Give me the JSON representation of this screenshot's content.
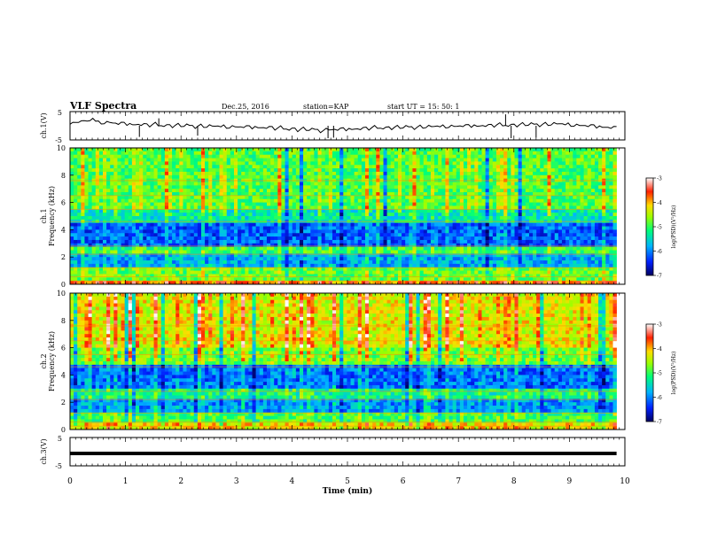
{
  "header": {
    "title": "VLF Spectra",
    "date": "Dec.25, 2016",
    "station": "station=KAP",
    "start": "start UT =  15: 50: 1"
  },
  "colors": {
    "background": "#ffffff",
    "axis": "#000000",
    "trace": "#000000",
    "colormap": [
      "#0000a0",
      "#0050ff",
      "#00c8ff",
      "#00ff80",
      "#a0ff00",
      "#ffd000",
      "#ff3000",
      "#ffffff"
    ]
  },
  "chart_data": [
    {
      "type": "line",
      "ylabel": "ch.1(V)",
      "ylim": [
        -5,
        5
      ],
      "yticks": [
        "5",
        "-5"
      ],
      "xlim": [
        0,
        9.85
      ],
      "x_step_min": 0.05,
      "values": [
        1.2,
        1.5,
        1.0,
        1.8,
        2.0,
        1.6,
        2.2,
        1.9,
        2.4,
        2.1,
        1.7,
        1.3,
        0.9,
        1.4,
        1.8,
        1.1,
        0.6,
        0.9,
        1.3,
        0.8,
        0.4,
        0.7,
        1.0,
        0.5,
        0.2,
        0.6,
        0.9,
        0.3,
        -0.1,
        0.4,
        0.8,
        0.2,
        -0.2,
        0.3,
        0.6,
        0.1,
        -0.3,
        0.2,
        0.5,
        0.0,
        -0.4,
        0.1,
        0.4,
        -0.1,
        -0.5,
        0.0,
        0.3,
        -0.2,
        -0.6,
        -0.1,
        0.2,
        -0.3,
        -0.7,
        -0.2,
        0.1,
        -0.4,
        -0.8,
        -0.3,
        0.0,
        -0.5,
        -0.9,
        -0.4,
        -0.1,
        -0.6,
        -1.0,
        -0.5,
        -0.2,
        -0.7,
        -1.1,
        -0.6,
        -0.3,
        -0.8,
        -1.4,
        -1.0,
        -0.6,
        -1.1,
        -1.6,
        -1.2,
        -0.8,
        -1.3,
        -1.9,
        -1.4,
        -1.0,
        -1.5,
        -2.0,
        -1.6,
        -1.2,
        -1.7,
        -2.2,
        -1.8,
        -1.4,
        -1.2,
        -1.6,
        -1.9,
        -1.5,
        -1.1,
        -1.4,
        -1.8,
        -1.3,
        -0.9,
        -1.2,
        -1.6,
        -1.1,
        -0.7,
        -1.0,
        -1.4,
        -0.9,
        -0.5,
        -0.8,
        -1.2,
        -0.7,
        -0.4,
        -0.8,
        -1.1,
        -0.6,
        -0.3,
        -0.7,
        -1.0,
        -0.5,
        -0.2,
        -0.6,
        -0.9,
        -0.4,
        -0.1,
        -0.5,
        -0.8,
        -0.3,
        0.0,
        -0.4,
        -0.7,
        -0.2,
        0.1,
        -0.3,
        -0.6,
        -0.1,
        0.2,
        -0.2,
        -0.5,
        0.0,
        0.3,
        -0.1,
        -0.4,
        0.1,
        0.4,
        0.0,
        -0.3,
        0.2,
        0.5,
        0.1,
        -0.2,
        0.3,
        0.6,
        0.2,
        -0.1,
        0.4,
        0.7,
        0.3,
        0.0,
        0.5,
        0.8,
        0.4,
        0.1,
        0.6,
        0.9,
        0.5,
        0.2,
        0.7,
        1.0,
        0.6,
        0.3,
        0.8,
        1.1,
        0.7,
        0.2,
        0.6,
        0.9,
        0.4,
        -0.1,
        0.3,
        0.6,
        0.1,
        -0.4,
        0.0,
        0.3,
        -0.2,
        -0.7,
        -0.3,
        0.0,
        -0.5,
        -1.0,
        -0.6,
        -0.3,
        -0.8
      ],
      "spikes": [
        {
          "x": 1.25,
          "y": -4.5
        },
        {
          "x": 1.6,
          "y": 3.0
        },
        {
          "x": 2.3,
          "y": -4.0
        },
        {
          "x": 4.65,
          "y": -5.0
        },
        {
          "x": 4.75,
          "y": -4.8
        },
        {
          "x": 7.85,
          "y": 4.6
        },
        {
          "x": 7.95,
          "y": -5.0
        },
        {
          "x": 8.4,
          "y": -4.8
        }
      ]
    },
    {
      "type": "heatmap",
      "ylabel": "ch.1\nFrequency (kHz)",
      "ylim": [
        0,
        10
      ],
      "yticks": [
        "0",
        "2",
        "4",
        "6",
        "8",
        "10"
      ],
      "xlim": [
        0,
        9.85
      ],
      "bands_khz": [
        {
          "from": 0.0,
          "to": 0.3,
          "level": -3.8
        },
        {
          "from": 0.3,
          "to": 1.2,
          "level": -4.8
        },
        {
          "from": 1.2,
          "to": 2.2,
          "level": -5.8
        },
        {
          "from": 2.2,
          "to": 2.8,
          "level": -5.0
        },
        {
          "from": 2.8,
          "to": 4.6,
          "level": -6.2
        },
        {
          "from": 4.6,
          "to": 5.5,
          "level": -5.4
        },
        {
          "from": 5.5,
          "to": 10.0,
          "level": -4.9
        }
      ]
    },
    {
      "type": "heatmap",
      "ylabel": "ch.2\nFrequency (kHz)",
      "ylim": [
        0,
        10
      ],
      "yticks": [
        "0",
        "2",
        "4",
        "6",
        "8",
        "10"
      ],
      "xlim": [
        0,
        9.85
      ],
      "bands_khz": [
        {
          "from": 0.0,
          "to": 0.4,
          "level": -4.2
        },
        {
          "from": 0.4,
          "to": 1.2,
          "level": -5.0
        },
        {
          "from": 1.2,
          "to": 2.2,
          "level": -5.9
        },
        {
          "from": 2.2,
          "to": 3.0,
          "level": -5.2
        },
        {
          "from": 3.0,
          "to": 4.8,
          "level": -6.1
        },
        {
          "from": 4.8,
          "to": 6.0,
          "level": -4.8
        },
        {
          "from": 6.0,
          "to": 10.0,
          "level": -4.3
        }
      ]
    },
    {
      "type": "line",
      "ylabel": "ch.3(V)",
      "ylim": [
        -5,
        5
      ],
      "yticks": [
        "5",
        "-5"
      ],
      "xlim": [
        0,
        9.85
      ],
      "constant": 0
    }
  ],
  "x_axis": {
    "label": "Time (min)",
    "range": [
      0,
      10
    ],
    "ticks": [
      "0",
      "1",
      "2",
      "3",
      "4",
      "5",
      "6",
      "7",
      "8",
      "9",
      "10"
    ]
  },
  "colorbar": {
    "label": "log(PSD)(V²/Hz)",
    "range": [
      -7,
      -3
    ],
    "ticks": [
      "-3",
      "-4",
      "-5",
      "-6",
      "-7"
    ]
  }
}
